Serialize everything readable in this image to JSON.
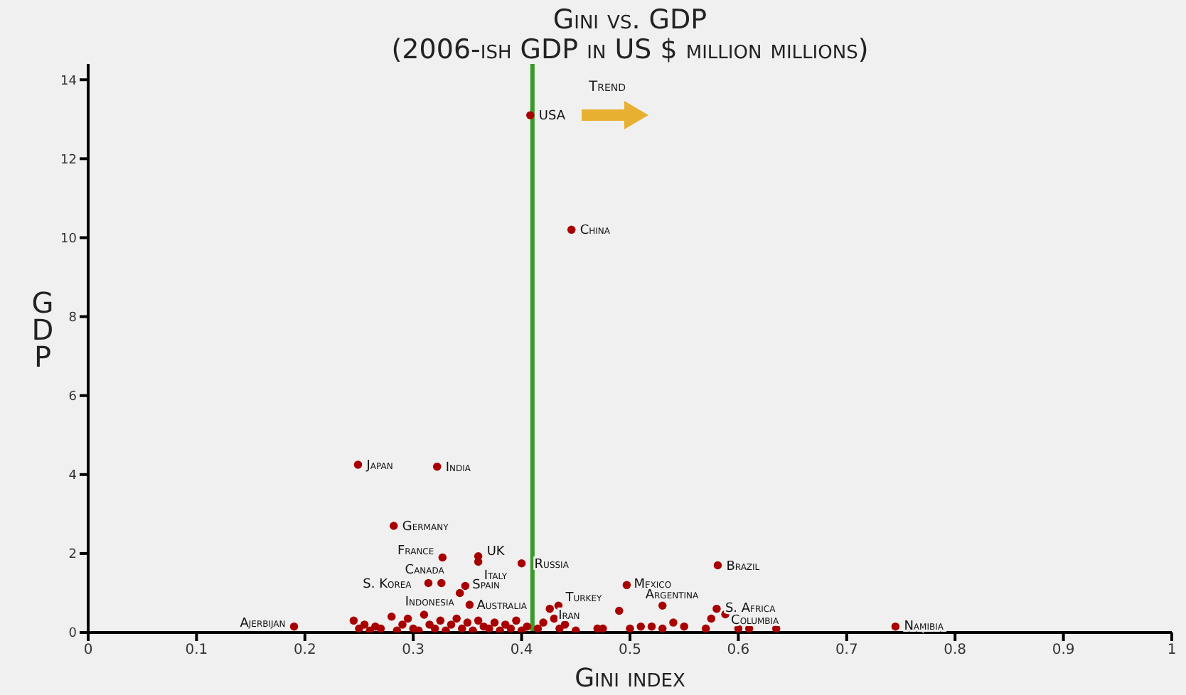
{
  "chart_data": {
    "type": "scatter",
    "title": "Gini vs. GDP",
    "subtitle": "(2006-ish GDP in US $ million millions)",
    "xlabel": "Gini index",
    "ylabel": "GDP",
    "xlim": [
      0,
      1
    ],
    "ylim": [
      0,
      14.4
    ],
    "xticks": [
      0,
      0.1,
      0.2,
      0.3,
      0.4,
      0.5,
      0.6,
      0.7,
      0.8,
      0.9,
      1
    ],
    "yticks": [
      0,
      2,
      4,
      6,
      8,
      10,
      12,
      14
    ],
    "marker": "circle",
    "series": [
      {
        "color": "#a80000",
        "x": [
          0.408,
          0.446,
          0.249,
          0.322,
          0.282,
          0.327,
          0.36,
          0.36,
          0.4,
          0.326,
          0.314,
          0.348,
          0.343,
          0.352,
          0.434,
          0.426,
          0.19,
          0.497,
          0.53,
          0.581,
          0.58,
          0.588,
          0.745,
          0.245,
          0.25,
          0.255,
          0.26,
          0.265,
          0.27,
          0.28,
          0.285,
          0.29,
          0.295,
          0.3,
          0.305,
          0.31,
          0.315,
          0.32,
          0.325,
          0.33,
          0.335,
          0.34,
          0.345,
          0.35,
          0.355,
          0.36,
          0.365,
          0.37,
          0.375,
          0.38,
          0.385,
          0.39,
          0.395,
          0.4,
          0.405,
          0.415,
          0.42,
          0.43,
          0.435,
          0.44,
          0.45,
          0.47,
          0.475,
          0.49,
          0.5,
          0.51,
          0.52,
          0.53,
          0.54,
          0.55,
          0.57,
          0.575,
          0.6,
          0.61,
          0.635
        ],
        "values": [
          13.1,
          10.2,
          4.25,
          4.2,
          2.7,
          1.9,
          1.93,
          1.79,
          1.75,
          1.25,
          1.25,
          1.18,
          1.0,
          0.7,
          0.68,
          0.6,
          0.15,
          1.2,
          0.68,
          1.7,
          0.6,
          0.46,
          0.15,
          0.3,
          0.1,
          0.2,
          0.05,
          0.15,
          0.1,
          0.4,
          0.05,
          0.2,
          0.35,
          0.1,
          0.05,
          0.45,
          0.2,
          0.1,
          0.3,
          0.05,
          0.2,
          0.35,
          0.1,
          0.25,
          0.05,
          0.3,
          0.15,
          0.1,
          0.25,
          0.05,
          0.2,
          0.1,
          0.3,
          0.05,
          0.15,
          0.1,
          0.25,
          0.35,
          0.1,
          0.2,
          0.05,
          0.1,
          0.1,
          0.55,
          0.1,
          0.15,
          0.15,
          0.1,
          0.25,
          0.15,
          0.1,
          0.35,
          0.1,
          0.1,
          0.1
        ]
      }
    ],
    "ref_lines": [
      {
        "axis": "x",
        "value": 0.41,
        "color": "#3a9a2a"
      }
    ],
    "annotations": [
      "Trend",
      {
        "text": "USA",
        "x": 0.408,
        "y": 13.1
      },
      {
        "text": "China",
        "x": 0.446,
        "y": 10.2
      },
      {
        "text": "Japan",
        "x": 0.249,
        "y": 4.25
      },
      {
        "text": "India",
        "x": 0.322,
        "y": 4.2
      },
      {
        "text": "Germany",
        "x": 0.282,
        "y": 2.7
      },
      {
        "text": "France",
        "x": 0.327,
        "y": 1.9
      },
      {
        "text": "UK",
        "x": 0.36,
        "y": 1.93
      },
      {
        "text": "Italy",
        "x": 0.36,
        "y": 1.79
      },
      {
        "text": "Russia",
        "x": 0.4,
        "y": 1.75
      },
      {
        "text": "Canada",
        "x": 0.326,
        "y": 1.25
      },
      {
        "text": "S. Korea",
        "x": 0.314,
        "y": 1.25
      },
      {
        "text": "Spain",
        "x": 0.348,
        "y": 1.18
      },
      {
        "text": "Indonesia",
        "x": 0.343,
        "y": 1.0
      },
      {
        "text": "Australia",
        "x": 0.352,
        "y": 0.7
      },
      {
        "text": "Turkey",
        "x": 0.434,
        "y": 0.68
      },
      {
        "text": "Iran",
        "x": 0.426,
        "y": 0.6
      },
      {
        "text": "Ajerbijan",
        "x": 0.19,
        "y": 0.15
      },
      {
        "text": "Mexico",
        "x": 0.497,
        "y": 1.2
      },
      {
        "text": "Argentina",
        "x": 0.53,
        "y": 0.68
      },
      {
        "text": "Brazil",
        "x": 0.581,
        "y": 1.7
      },
      {
        "text": "S. Africa",
        "x": 0.58,
        "y": 0.6
      },
      {
        "text": "Columbia",
        "x": 0.588,
        "y": 0.46
      },
      {
        "text": "Namibia",
        "x": 0.745,
        "y": 0.15
      }
    ]
  }
}
